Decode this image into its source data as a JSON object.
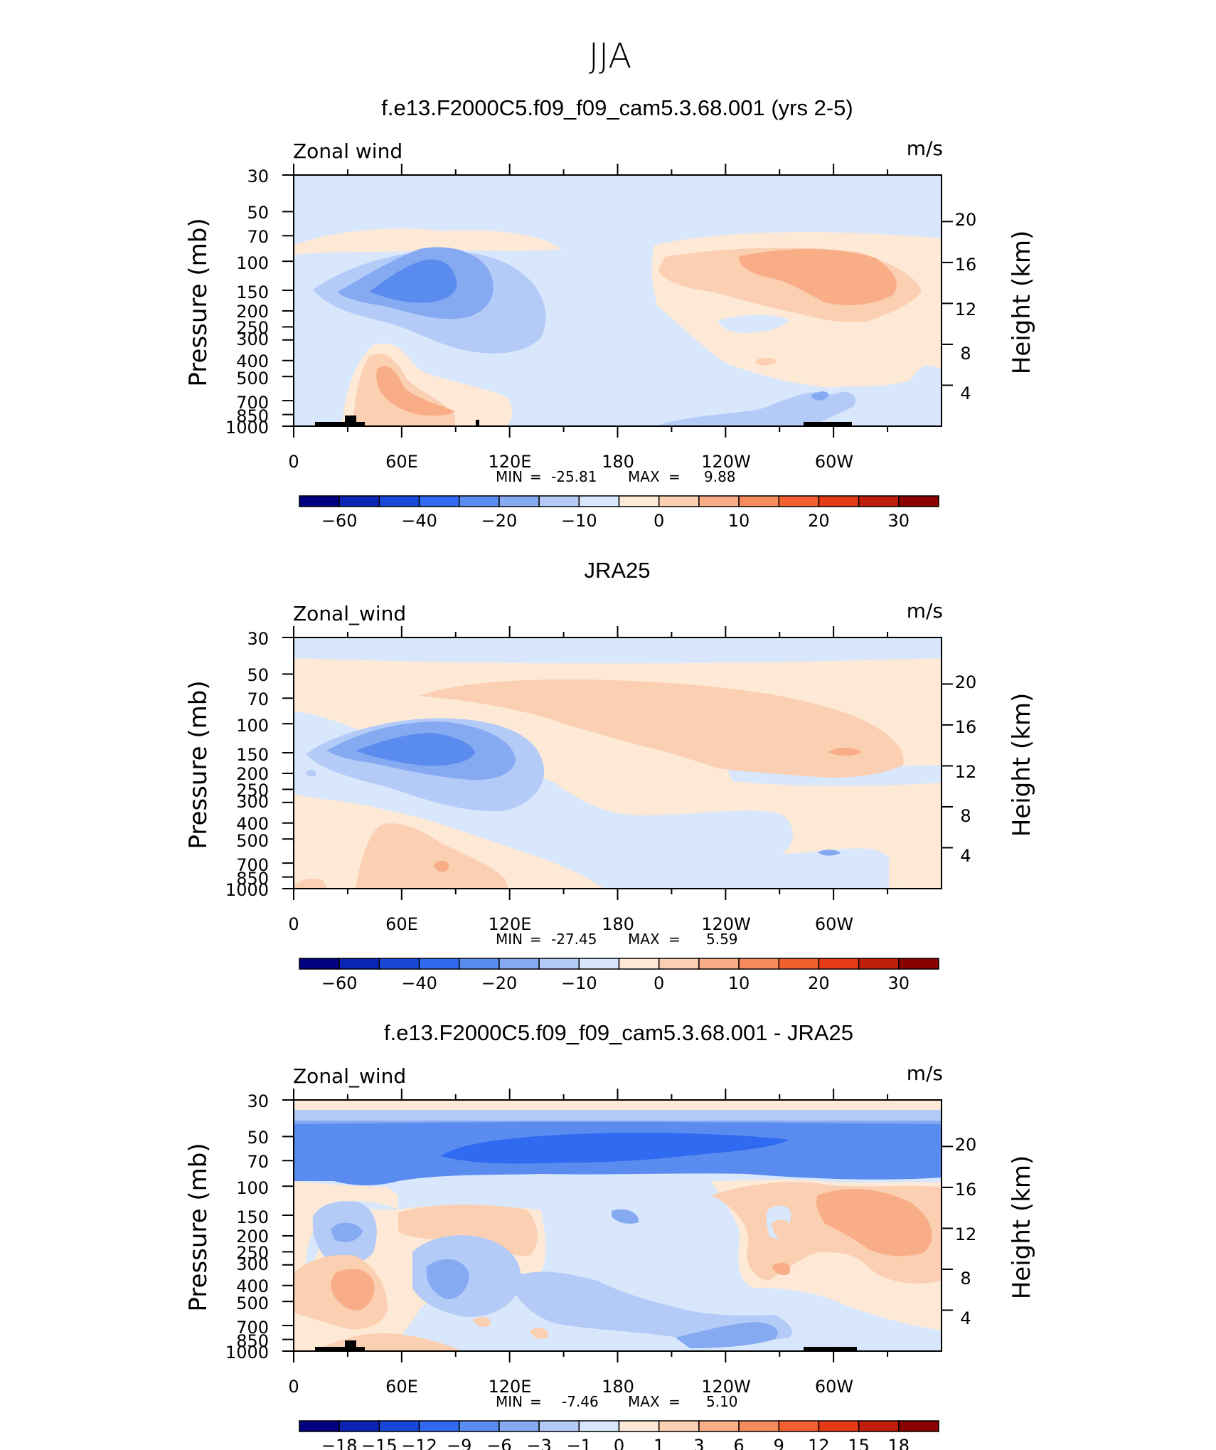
{
  "page_title": "JJA",
  "lon_ticks": [
    "0",
    "60E",
    "120E",
    "180",
    "120W",
    "60W"
  ],
  "pressure_ticks": [
    "30",
    "50",
    "70",
    "100",
    "150",
    "200",
    "250",
    "300",
    "400",
    "500",
    "700",
    "850",
    "1000"
  ],
  "height_ticks": [
    "20",
    "16",
    "12",
    "8",
    "4"
  ],
  "pressure_axis_label": "Pressure (mb)",
  "height_axis_label": "Height (km)",
  "colors": {
    "cool": [
      "#000080",
      "#0a24b4",
      "#1948d8",
      "#2f6af0",
      "#5a8cf0",
      "#86aaf2",
      "#b4cbf8",
      "#d8e7fc"
    ],
    "warm": [
      "#fde9d6",
      "#fbcfb1",
      "#f8ad86",
      "#f58a5c",
      "#f3602f",
      "#e43a16",
      "#bf1e0a",
      "#8a0000"
    ]
  },
  "chart_data": [
    {
      "type": "heatmap",
      "title": "f.e13.F2000C5.f09_f09_cam5.3.68.001 (yrs 2-5)",
      "left_label": "Zonal wind",
      "units": "m/s",
      "stats": {
        "min_label": "MIN",
        "min": "-25.81",
        "max_label": "MAX",
        "max": "9.88"
      },
      "colorbar_labels": [
        "-60",
        "-40",
        "-20",
        "-10",
        "0",
        "10",
        "20",
        "30"
      ],
      "xlabel": "",
      "ylabel": "Pressure (mb)",
      "y2label": "Height (km)",
      "xlim": [
        0,
        360
      ],
      "ylim": [
        1000,
        30
      ],
      "y_scale": "log"
    },
    {
      "type": "heatmap",
      "title": "JRA25",
      "left_label": "Zonal_wind",
      "units": "m/s",
      "stats": {
        "min_label": "MIN",
        "min": "-27.45",
        "max_label": "MAX",
        "max": "5.59"
      },
      "colorbar_labels": [
        "-60",
        "-40",
        "-20",
        "-10",
        "0",
        "10",
        "20",
        "30"
      ],
      "xlabel": "",
      "ylabel": "Pressure (mb)",
      "y2label": "Height (km)",
      "xlim": [
        0,
        360
      ],
      "ylim": [
        1000,
        30
      ],
      "y_scale": "log"
    },
    {
      "type": "heatmap",
      "title": "f.e13.F2000C5.f09_f09_cam5.3.68.001 - JRA25",
      "left_label": "Zonal_wind",
      "units": "m/s",
      "stats": {
        "min_label": "MIN",
        "min": "-7.46",
        "max_label": "MAX",
        "max": "5.10"
      },
      "colorbar_labels": [
        "-18",
        "-15",
        "-12",
        "-9",
        "-6",
        "-3",
        "-1",
        "0",
        "1",
        "3",
        "6",
        "9",
        "12",
        "15",
        "18"
      ],
      "xlabel": "",
      "ylabel": "Pressure (mb)",
      "y2label": "Height (km)",
      "xlim": [
        0,
        360
      ],
      "ylim": [
        1000,
        30
      ],
      "y_scale": "log"
    }
  ]
}
